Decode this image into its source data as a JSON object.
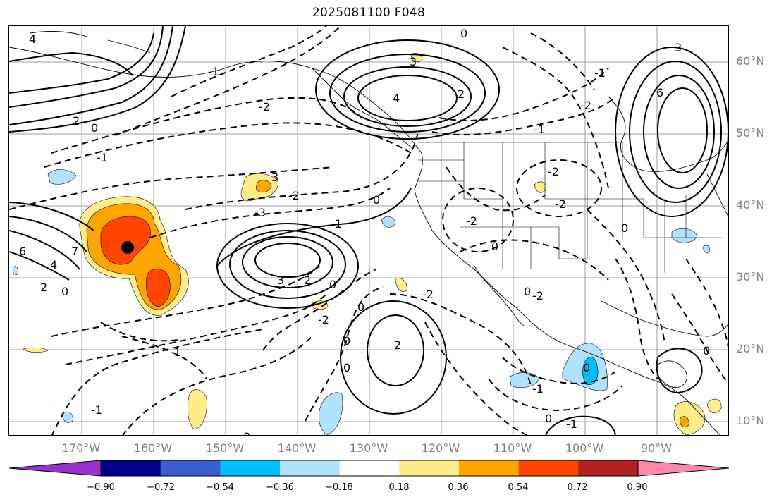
{
  "title": "2025081100 F048",
  "lat_labels": [
    "60°N",
    "50°N",
    "40°N",
    "30°N",
    "20°N",
    "10°N"
  ],
  "lon_labels": [
    "170°W",
    "160°W",
    "150°W",
    "140°W",
    "130°W",
    "120°W",
    "110°W",
    "100°W",
    "90°W"
  ],
  "colorbar": {
    "ticks": [
      "−0.90",
      "−0.72",
      "−0.54",
      "−0.36",
      "−0.18",
      "0.18",
      "0.36",
      "0.54",
      "0.72",
      "0.90"
    ],
    "colors": [
      "#9932cc",
      "#00008b",
      "#3a5fcd",
      "#00bfff",
      "#b0e2ff",
      "#ffffff",
      "#ffec8b",
      "#ffa500",
      "#ff4500",
      "#b22222",
      "#ff88aa"
    ]
  },
  "contour_labels": [
    {
      "text": "4"
    },
    {
      "text": "2"
    },
    {
      "text": "0"
    },
    {
      "text": "-1"
    },
    {
      "text": "-2"
    },
    {
      "text": "0"
    },
    {
      "text": "2"
    },
    {
      "text": "4"
    },
    {
      "text": "3"
    },
    {
      "text": "0"
    },
    {
      "text": "-2"
    },
    {
      "text": "-3"
    },
    {
      "text": "-1"
    },
    {
      "text": "-2"
    },
    {
      "text": "3"
    },
    {
      "text": "6"
    },
    {
      "text": "3"
    },
    {
      "text": "-2"
    },
    {
      "text": "0"
    },
    {
      "text": "-2"
    },
    {
      "text": "-2"
    },
    {
      "text": "0"
    },
    {
      "text": "0"
    },
    {
      "text": "1"
    },
    {
      "text": "3"
    },
    {
      "text": "2"
    },
    {
      "text": "0"
    },
    {
      "text": "6"
    },
    {
      "text": "7"
    },
    {
      "text": "4"
    },
    {
      "text": "2"
    },
    {
      "text": "0"
    },
    {
      "text": "-1"
    },
    {
      "text": "-2"
    },
    {
      "text": "0"
    },
    {
      "text": "2"
    },
    {
      "text": "0"
    },
    {
      "text": "-1"
    },
    {
      "text": "0"
    },
    {
      "text": "-1"
    },
    {
      "text": "0"
    },
    {
      "text": "-1"
    },
    {
      "text": "-1"
    },
    {
      "text": "-2"
    },
    {
      "text": "0"
    },
    {
      "text": "-1"
    },
    {
      "text": "-2"
    },
    {
      "text": "0"
    },
    {
      "text": "0"
    }
  ]
}
